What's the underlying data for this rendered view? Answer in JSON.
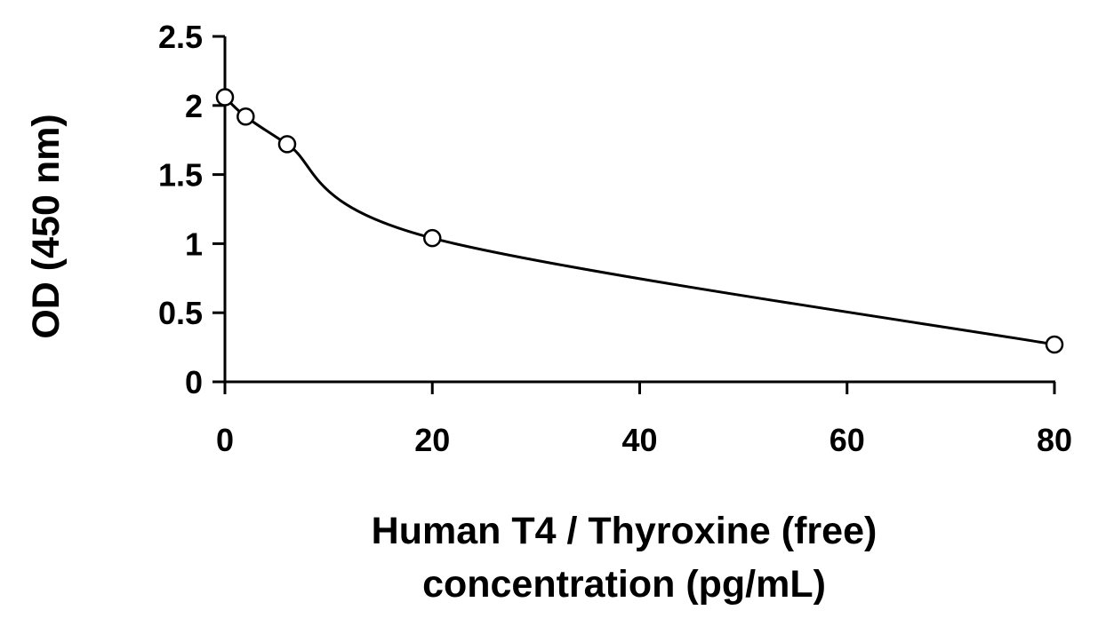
{
  "chart_data": {
    "type": "line",
    "title": "",
    "xlabel_lines": [
      "Human T4 / Thyroxine (free)",
      "concentration (pg/mL)"
    ],
    "ylabel": "OD (450 nm)",
    "xlim": [
      0,
      80
    ],
    "ylim": [
      0,
      2.5
    ],
    "xticks": [
      0,
      20,
      40,
      60,
      80
    ],
    "yticks": [
      0,
      0.5,
      1,
      1.5,
      2,
      2.5
    ],
    "xtick_labels": [
      "0",
      "20",
      "40",
      "60",
      "80"
    ],
    "ytick_labels": [
      "0",
      "0.5",
      "1",
      "1.5",
      "2",
      "2.5"
    ],
    "grid": false,
    "legend": "none",
    "line_color": "#000000",
    "marker_fill": "#ffffff",
    "series": [
      {
        "x": [
          0,
          2,
          6,
          20,
          80
        ],
        "y": [
          2.06,
          1.92,
          1.72,
          1.04,
          0.27
        ]
      }
    ]
  }
}
